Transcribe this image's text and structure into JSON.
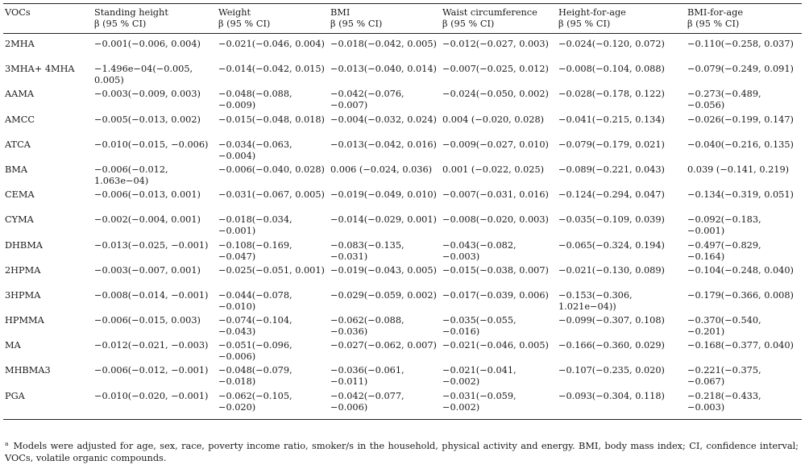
{
  "header": {
    "voc": "VOCs",
    "ci": "β (95 % CI)",
    "columns": [
      "Standing height",
      "Weight",
      "BMI",
      "Waist circumference",
      "Height-for-age",
      "BMI-for-age"
    ]
  },
  "rows": [
    {
      "voc": "2MHA",
      "cells": [
        "−0.001(−0.006, 0.004)",
        "−0.021(−0.046, 0.004)",
        "−0.018(−0.042, 0.005)",
        "−0.012(−0.027, 0.003)",
        "−0.024(−0.120, 0.072)",
        "−0.110(−0.258, 0.037)"
      ]
    },
    {
      "voc": "3MHA+ 4MHA",
      "cells": [
        "−1.496e−04(−0.005, 0.005)",
        "−0.014(−0.042, 0.015)",
        "−0.013(−0.040, 0.014)",
        "−0.007(−0.025, 0.012)",
        "−0.008(−0.104, 0.088)",
        "−0.079(−0.249, 0.091)"
      ]
    },
    {
      "voc": "AAMA",
      "cells": [
        "−0.003(−0.009, 0.003)",
        "−0.048(−0.088, −0.009)",
        "−0.042(−0.076, −0.007)",
        "−0.024(−0.050, 0.002)",
        "−0.028(−0.178, 0.122)",
        "−0.273(−0.489, −0.056)"
      ]
    },
    {
      "voc": "AMCC",
      "cells": [
        "−0.005(−0.013, 0.002)",
        "−0.015(−0.048, 0.018)",
        "−0.004(−0.032, 0.024)",
        "0.004 (−0.020, 0.028)",
        "−0.041(−0.215, 0.134)",
        "−0.026(−0.199, 0.147)"
      ]
    },
    {
      "voc": "ATCA",
      "cells": [
        "−0.010(−0.015, −0.006)",
        "−0.034(−0.063, −0.004)",
        "−0.013(−0.042, 0.016)",
        "−0.009(−0.027, 0.010)",
        "−0.079(−0.179, 0.021)",
        "−0.040(−0.216, 0.135)"
      ]
    },
    {
      "voc": "BMA",
      "cells": [
        "−0.006(−0.012, 1.063e−04)",
        "−0.006(−0.040, 0.028)",
        "0.006 (−0.024, 0.036)",
        "0.001 (−0.022, 0.025)",
        "−0.089(−0.221, 0.043)",
        "0.039 (−0.141, 0.219)"
      ]
    },
    {
      "voc": "CEMA",
      "cells": [
        "−0.006(−0.013, 0.001)",
        "−0.031(−0.067, 0.005)",
        "−0.019(−0.049, 0.010)",
        "−0.007(−0.031, 0.016)",
        "−0.124(−0.294, 0.047)",
        "−0.134(−0.319, 0.051)"
      ]
    },
    {
      "voc": "CYMA",
      "cells": [
        "−0.002(−0.004, 0.001)",
        "−0.018(−0.034, −0.001)",
        "−0.014(−0.029, 0.001)",
        "−0.008(−0.020, 0.003)",
        "−0.035(−0.109, 0.039)",
        "−0.092(−0.183, −0.001)"
      ]
    },
    {
      "voc": "DHBMA",
      "cells": [
        "−0.013(−0.025, −0.001)",
        "−0.108(−0.169, −0.047)",
        "−0.083(−0.135, −0.031)",
        "−0.043(−0.082, −0.003)",
        "−0.065(−0.324, 0.194)",
        "−0.497(−0.829, −0.164)"
      ]
    },
    {
      "voc": "2HPMA",
      "cells": [
        "−0.003(−0.007, 0.001)",
        "−0.025(−0.051, 0.001)",
        "−0.019(−0.043, 0.005)",
        "−0.015(−0.038, 0.007)",
        "−0.021(−0.130, 0.089)",
        "−0.104(−0.248, 0.040)"
      ]
    },
    {
      "voc": "3HPMA",
      "cells": [
        "−0.008(−0.014, −0.001)",
        "−0.044(−0.078, −0.010)",
        "−0.029(−0.059, 0.002)",
        "−0.017(−0.039, 0.006)",
        "−0.153(−0.306, 1.021e−04))",
        "−0.179(−0.366, 0.008)"
      ]
    },
    {
      "voc": "HPMMA",
      "cells": [
        "−0.006(−0.015, 0.003)",
        "−0.074(−0.104, −0.043)",
        "−0.062(−0.088, −0.036)",
        "−0.035(−0.055, −0.016)",
        "−0.099(−0.307, 0.108)",
        "−0.370(−0.540, −0.201)"
      ]
    },
    {
      "voc": "MA",
      "cells": [
        "−0.012(−0.021, −0.003)",
        "−0.051(−0.096, −0.006)",
        "−0.027(−0.062, 0.007)",
        "−0.021(−0.046, 0.005)",
        "−0.166(−0.360, 0.029)",
        "−0.168(−0.377, 0.040)"
      ]
    },
    {
      "voc": "MHBMA3",
      "cells": [
        "−0.006(−0.012, −0.001)",
        "−0.048(−0.079, −0.018)",
        "−0.036(−0.061, −0.011)",
        "−0.021(−0.041, −0.002)",
        "−0.107(−0.235, 0.020)",
        "−0.221(−0.375, −0.067)"
      ]
    },
    {
      "voc": "PGA",
      "cells": [
        "−0.010(−0.020, −0.001)",
        "−0.062(−0.105, −0.020)",
        "−0.042(−0.077, −0.006)",
        "−0.031(−0.059, −0.002)",
        "−0.093(−0.304, 0.118)",
        "−0.218(−0.433, −0.003)"
      ]
    }
  ],
  "footnote": {
    "marker": "a",
    "text": "Models were adjusted for age, sex, race, poverty income ratio, smoker/s in the household, physical activity and energy. BMI, body mass index; CI, confidence interval; VOCs, volatile organic compounds."
  }
}
